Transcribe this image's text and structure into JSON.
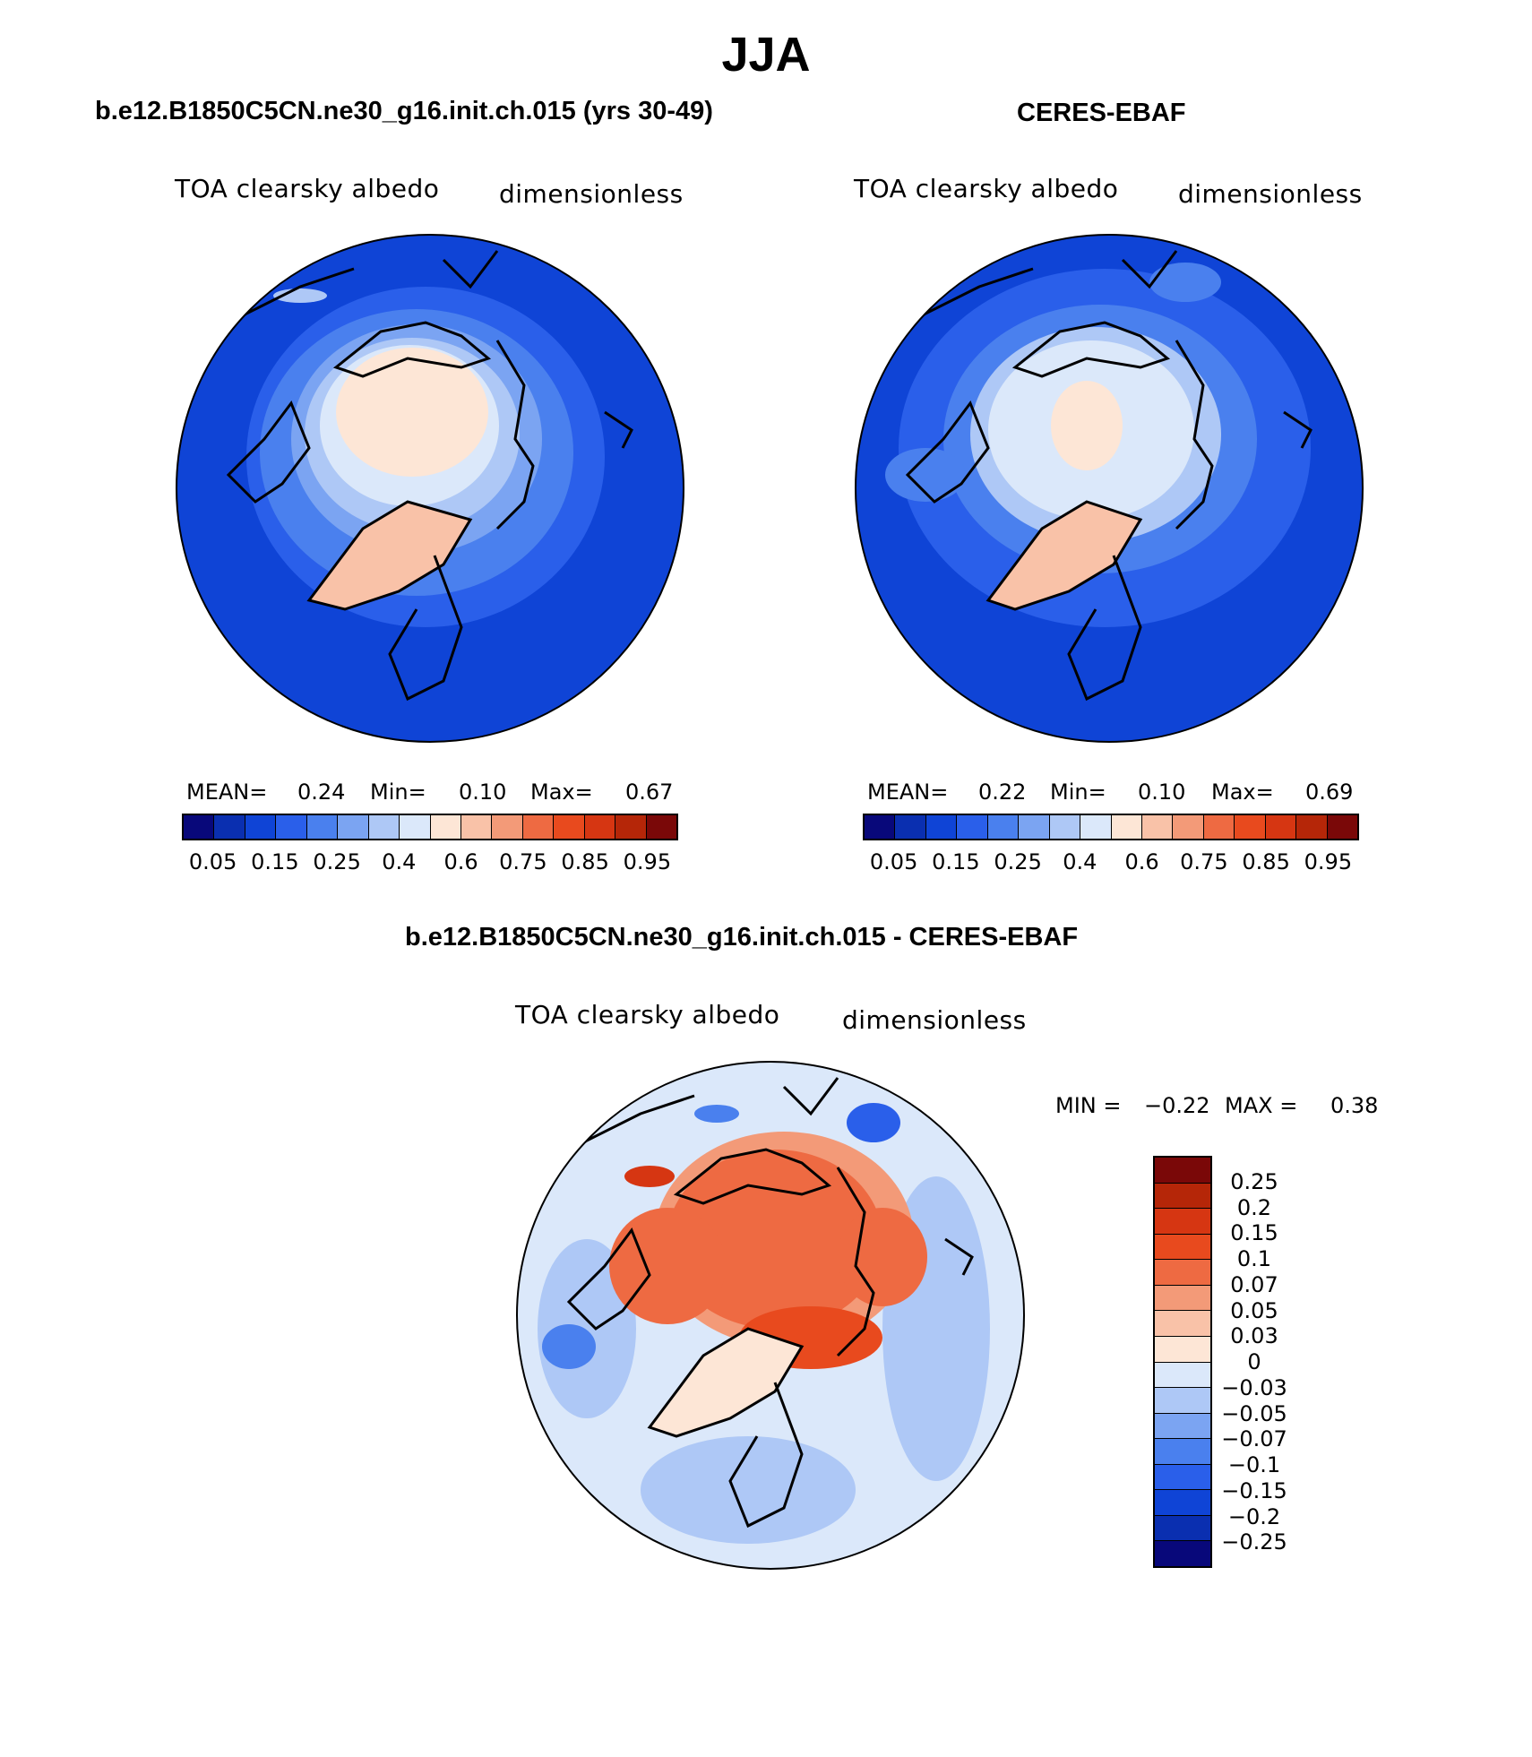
{
  "title": "JJA",
  "panels": [
    {
      "title": "b.e12.B1850C5CN.ne30_g16.init.ch.015 (yrs 30-49)",
      "variable": "TOA clearsky albedo",
      "units": "dimensionless",
      "stats": {
        "mean_label": "MEAN=",
        "mean": "0.24",
        "min_label": "Min=",
        "min": "0.10",
        "max_label": "Max=",
        "max": "0.67"
      }
    },
    {
      "title": "CERES-EBAF",
      "variable": "TOA clearsky albedo",
      "units": "dimensionless",
      "stats": {
        "mean_label": "MEAN=",
        "mean": "0.22",
        "min_label": "Min=",
        "min": "0.10",
        "max_label": "Max=",
        "max": "0.69"
      }
    },
    {
      "title": "b.e12.B1850C5CN.ne30_g16.init.ch.015 - CERES-EBAF",
      "variable": "TOA clearsky albedo",
      "units": "dimensionless",
      "stats": {
        "min_label": "MIN =",
        "min": "−0.22",
        "max_label": "MAX =",
        "max": "0.38"
      }
    }
  ],
  "colorbar_abs": {
    "ticks": [
      "0.05",
      "0.15",
      "0.25",
      "0.4",
      "0.6",
      "0.75",
      "0.85",
      "0.95"
    ],
    "colors": [
      "#08087a",
      "#0a2fb0",
      "#0f44d6",
      "#2a5fea",
      "#4a80ee",
      "#7ba4f2",
      "#aec8f6",
      "#dbe8fa",
      "#fde6d6",
      "#f9c2a8",
      "#f39a78",
      "#ee6a42",
      "#e84a1e",
      "#d63612",
      "#b52608",
      "#7a0808"
    ]
  },
  "colorbar_diff": {
    "ticks": [
      "0.25",
      "0.2",
      "0.15",
      "0.1",
      "0.07",
      "0.05",
      "0.03",
      "0",
      "−0.03",
      "−0.05",
      "−0.07",
      "−0.1",
      "−0.15",
      "−0.2",
      "−0.25"
    ],
    "colors": [
      "#7a0808",
      "#b52608",
      "#d63612",
      "#e84a1e",
      "#ee6a42",
      "#f39a78",
      "#f9c2a8",
      "#fde6d6",
      "#dbe8fa",
      "#aec8f6",
      "#7ba4f2",
      "#4a80ee",
      "#2a5fea",
      "#0f44d6",
      "#0a2fb0",
      "#08087a"
    ]
  }
}
